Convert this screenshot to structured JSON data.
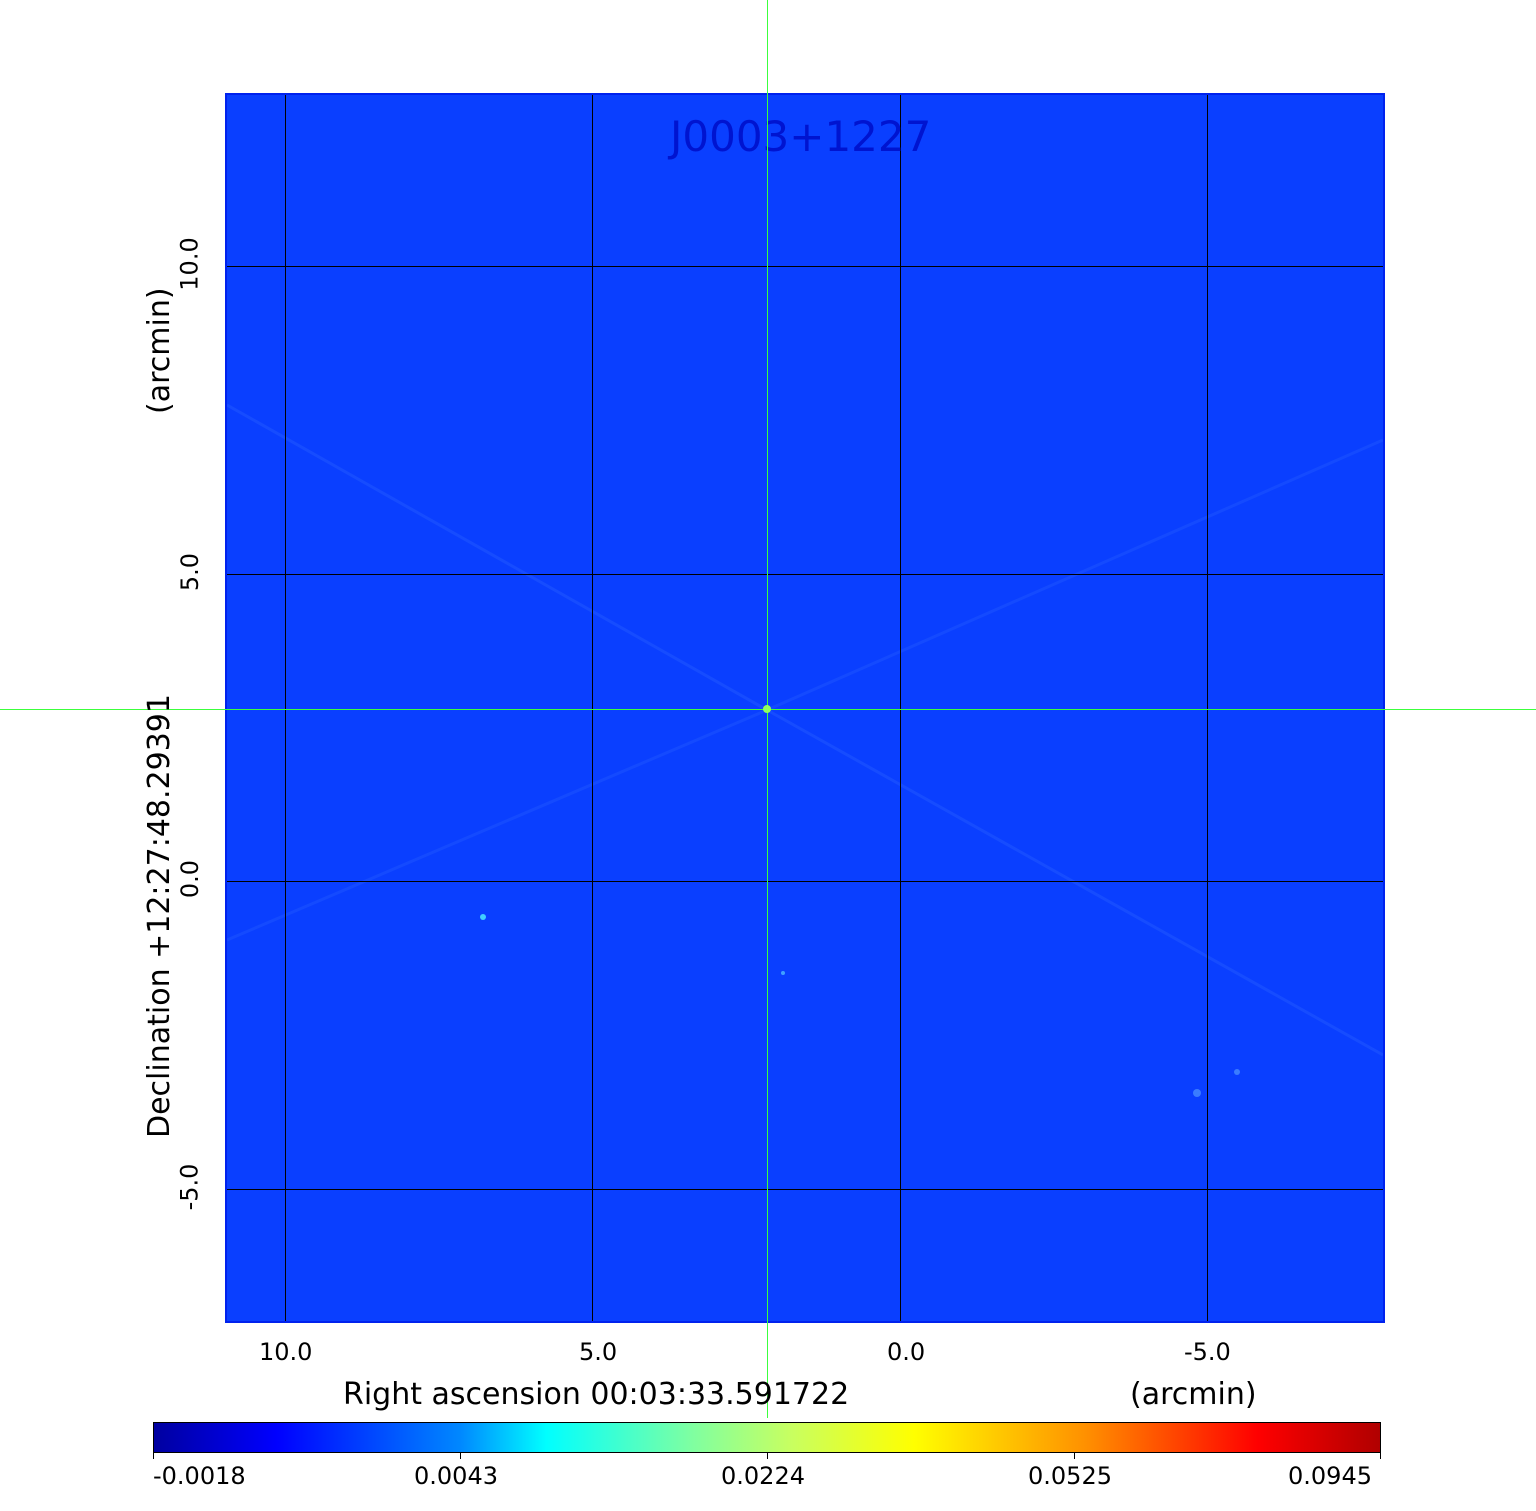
{
  "title": "J0003+1227",
  "x_axis": {
    "label": "Right ascension  00:03:33.591722",
    "unit": "(arcmin)",
    "ticks": [
      "10.0",
      "5.0",
      "0.0",
      "-5.0"
    ]
  },
  "y_axis": {
    "label": "Declination  +12:27:48.29391",
    "unit": "(arcmin)",
    "ticks": [
      "10.0",
      "5.0",
      "0.0",
      "-5.0"
    ]
  },
  "colorbar": {
    "colormap": "jet",
    "ticks": [
      "-0.0018",
      "0.0043",
      "0.0224",
      "0.0525",
      "0.0945"
    ]
  },
  "colors": {
    "image_background": "#0a3fff",
    "crosshair": "#3cff3c",
    "title": "#0014d0",
    "grid": "#000000"
  }
}
